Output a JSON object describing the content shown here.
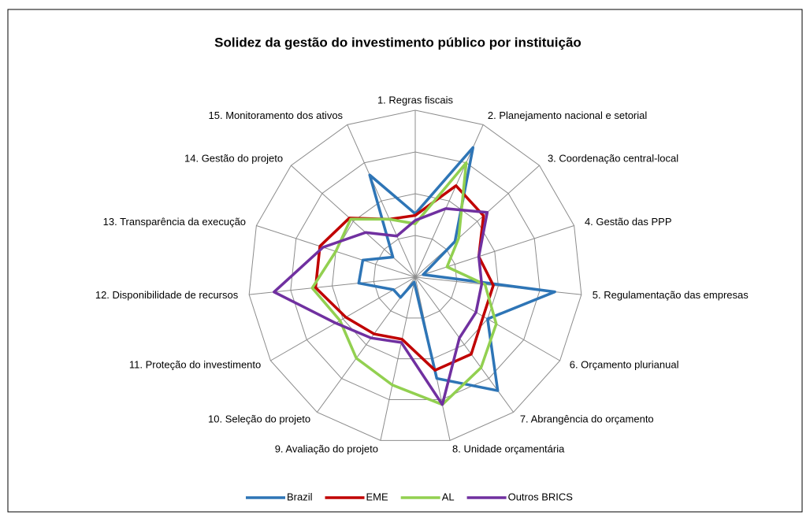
{
  "chart_data": {
    "type": "radar",
    "title": "Solidez da gestão do investimento público por instituição",
    "categories": [
      "1. Regras fiscais",
      "2. Planejamento nacional e setorial",
      "3. Coordenação central-local",
      "4. Gestão das PPP",
      "5. Regulamentação das empresas",
      "6. Orçamento plurianual",
      "7. Abrangência do orçamento",
      "8. Unidade orçamentária",
      "9. Avaliação do projeto",
      "10. Seleção do projeto",
      "11. Proteção do investimento",
      "12. Disponibilidade de recursos",
      "13. Transparência da execução",
      "14. Gestão do projeto",
      "15. Monitoramento dos ativos"
    ],
    "rlim": [
      0,
      1
    ],
    "rticks": [
      0.25,
      0.5,
      0.75,
      1
    ],
    "grid": true,
    "series": [
      {
        "name": "Brazil",
        "color": "#2e75b6",
        "values": [
          0.38,
          0.85,
          0.32,
          0.05,
          0.84,
          0.5,
          0.84,
          0.62,
          0.03,
          0.15,
          0.15,
          0.34,
          0.33,
          0.18,
          0.67
        ]
      },
      {
        "name": "EME",
        "color": "#c00000",
        "values": [
          0.37,
          0.6,
          0.55,
          0.4,
          0.47,
          0.47,
          0.57,
          0.57,
          0.38,
          0.42,
          0.48,
          0.6,
          0.6,
          0.53,
          0.38
        ]
      },
      {
        "name": "AL",
        "color": "#92d050",
        "values": [
          0.32,
          0.75,
          0.35,
          0.2,
          0.42,
          0.56,
          0.67,
          0.78,
          0.66,
          0.6,
          0.52,
          0.62,
          0.5,
          0.52,
          0.38
        ]
      },
      {
        "name": "Outros BRICS",
        "color": "#7030a0",
        "values": [
          0.34,
          0.45,
          0.58,
          0.4,
          0.4,
          0.42,
          0.45,
          0.78,
          0.4,
          0.45,
          0.55,
          0.85,
          0.58,
          0.4,
          0.27
        ]
      }
    ],
    "legend": "bottom"
  }
}
